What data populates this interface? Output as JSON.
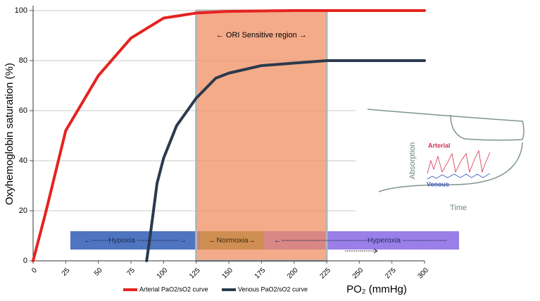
{
  "chart_data": {
    "type": "line",
    "y_label": "Oxyhemoglobin saturation (%)",
    "x_label": "PO₂ (mmHg)",
    "xlim": [
      0,
      300
    ],
    "ylim": [
      0,
      100
    ],
    "xticks": [
      0,
      25,
      50,
      75,
      100,
      125,
      150,
      175,
      200,
      225,
      250,
      275,
      300
    ],
    "yticks": [
      0,
      20,
      40,
      60,
      80,
      100
    ],
    "grid": true,
    "series": [
      {
        "name": "Arterial PaO2/sO2 curve",
        "color": "#e52320",
        "x": [
          0,
          10,
          25,
          50,
          75,
          100,
          125,
          150,
          200,
          300
        ],
        "values": [
          0,
          20,
          52,
          74,
          89,
          97,
          99,
          99.7,
          100,
          100
        ]
      },
      {
        "name": "Venous PaO2/sO2 curve",
        "color": "#2b3a4d",
        "x": [
          87,
          90,
          95,
          100,
          110,
          125,
          140,
          150,
          175,
          200,
          225,
          300
        ],
        "values": [
          0,
          11,
          31,
          41,
          54,
          65,
          73,
          75,
          78,
          79,
          80,
          80
        ]
      }
    ],
    "regions": [
      {
        "label": "← ORI Sensitive region →",
        "x": [
          125,
          225
        ],
        "color": "#f08a5d"
      }
    ],
    "bands": [
      {
        "label": "←-------Hypoxia -----------------→",
        "color": "#4f74c0"
      },
      {
        "label": "←Normoxia→",
        "color": "#7a9a3c"
      },
      {
        "label": "←-----------------------------------Hyperoxia ------------------",
        "color": "#9a7fe8"
      }
    ],
    "inset": {
      "y_label": "Absorption",
      "x_label": "Time",
      "arterial": "Arterial",
      "venous": "Venous"
    }
  }
}
